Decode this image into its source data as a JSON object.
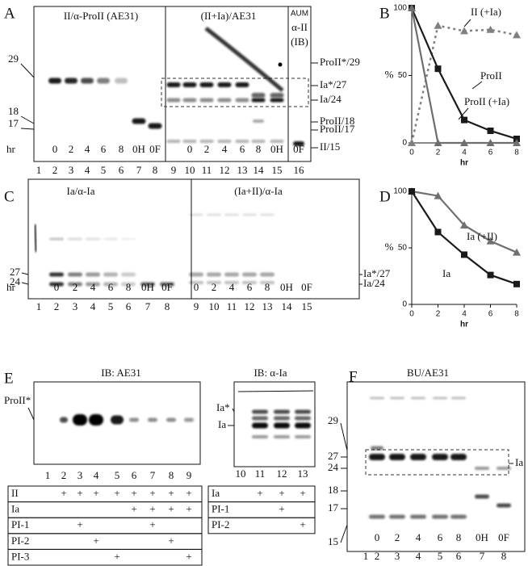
{
  "panel_letters": [
    "A",
    "B",
    "C",
    "D",
    "E",
    "F"
  ],
  "panels": {
    "A": {
      "titles": [
        "II/α-ProII (AE31)",
        "(II+Ia)/AE31",
        "AUM",
        "α-II",
        "(IB)"
      ],
      "markers": [
        "29",
        "18",
        "17"
      ],
      "hr": "hr",
      "times": [
        "0",
        "2",
        "4",
        "6",
        "8",
        "0H",
        "0F",
        "0",
        "2",
        "4",
        "6",
        "8",
        "0H",
        "0F"
      ],
      "lanes": [
        "1",
        "2",
        "3",
        "4",
        "5",
        "6",
        "7",
        "8",
        "9",
        "10",
        "11",
        "12",
        "13",
        "14",
        "15",
        "16"
      ],
      "right_labels": [
        "ProII*/29",
        "Ia*/27",
        "Ia/24",
        "ProII/18",
        "ProII/17",
        "II/15"
      ]
    },
    "C": {
      "titles": [
        "Ia/α-Ia",
        "(Ia+II)/α-Ia"
      ],
      "markers": [
        "27",
        "24"
      ],
      "hr": "hr",
      "times": [
        "0",
        "2",
        "4",
        "6",
        "8",
        "0H",
        "0F",
        "0",
        "2",
        "4",
        "6",
        "8",
        "0H",
        "0F"
      ],
      "lanes": [
        "1",
        "2",
        "3",
        "4",
        "5",
        "6",
        "7",
        "8",
        "9",
        "10",
        "11",
        "12",
        "13",
        "14",
        "15"
      ],
      "right_labels": [
        "Ia*/27",
        "Ia/24"
      ]
    },
    "E": {
      "titles": [
        "IB: AE31",
        "IB: α-Ia"
      ],
      "left_band_labels": [
        "ProII*"
      ],
      "right_band_labels": [
        "Ia*",
        "Ia"
      ],
      "lanes": [
        "1",
        "2",
        "3",
        "4",
        "5",
        "6",
        "7",
        "8",
        "9",
        "10",
        "11",
        "12",
        "13"
      ],
      "left_table": [
        {
          "label": "II",
          "cells": [
            null,
            "+",
            "+",
            "+",
            "+",
            "+",
            "+",
            "+",
            "+"
          ]
        },
        {
          "label": "Ia",
          "cells": [
            null,
            null,
            null,
            null,
            null,
            "+",
            "+",
            "+",
            "+"
          ]
        },
        {
          "label": "PI-1",
          "cells": [
            null,
            null,
            "+",
            null,
            null,
            null,
            "+",
            null,
            null
          ]
        },
        {
          "label": "PI-2",
          "cells": [
            null,
            null,
            null,
            "+",
            null,
            null,
            null,
            "+",
            null
          ]
        },
        {
          "label": "PI-3",
          "cells": [
            null,
            null,
            null,
            null,
            "+",
            null,
            null,
            null,
            "+"
          ]
        }
      ],
      "right_table": [
        {
          "label": "Ia",
          "cells": [
            null,
            "+",
            "+",
            "+"
          ]
        },
        {
          "label": "PI-1",
          "cells": [
            null,
            null,
            "+",
            null
          ]
        },
        {
          "label": "PI-2",
          "cells": [
            null,
            null,
            null,
            "+"
          ]
        }
      ]
    },
    "F": {
      "title": "BU/AE31",
      "markers": [
        "29",
        "27",
        "24",
        "18",
        "17",
        "15"
      ],
      "times": [
        "0",
        "2",
        "4",
        "6",
        "8",
        "0H",
        "0F"
      ],
      "lanes": [
        "1",
        "2",
        "3",
        "4",
        "5",
        "6",
        "7",
        "8"
      ],
      "right_labels": [
        "Ia"
      ]
    }
  },
  "chart_data": [
    {
      "type": "line",
      "x": [
        0,
        2,
        4,
        6,
        8
      ],
      "xlim": [
        0,
        8
      ],
      "xticks": [
        0,
        2,
        4,
        6,
        8
      ],
      "ylim": [
        0,
        100
      ],
      "yticks": [
        0,
        50,
        100
      ],
      "x_label": "hr",
      "y_label": "%",
      "series": [
        {
          "name": "II (+Ia)",
          "color": "#808080",
          "marker": "triangle",
          "line_style": "dotted",
          "values": [
            0,
            87,
            83,
            84,
            80
          ]
        },
        {
          "name": "ProII",
          "color": "#1a1a1a",
          "marker": "square",
          "line_style": "solid",
          "values": [
            100,
            55,
            17,
            9,
            3
          ]
        },
        {
          "name": "ProII (+Ia)",
          "color": "#6e6e6e",
          "marker": "triangle",
          "line_style": "solid",
          "values": [
            100,
            0,
            0,
            0,
            0
          ]
        }
      ]
    },
    {
      "type": "line",
      "x": [
        0,
        2,
        4,
        6,
        8
      ],
      "xlim": [
        0,
        8
      ],
      "xticks": [
        0,
        2,
        4,
        6,
        8
      ],
      "ylim": [
        0,
        100
      ],
      "yticks": [
        0,
        50,
        100
      ],
      "x_label": "hr",
      "y_label": "%",
      "series": [
        {
          "name": "Ia (+II)",
          "color": "#707070",
          "marker": "triangle",
          "line_style": "solid",
          "values": [
            100,
            96,
            70,
            56,
            46
          ]
        },
        {
          "name": "Ia",
          "color": "#1a1a1a",
          "marker": "square",
          "line_style": "solid",
          "values": [
            100,
            64,
            44,
            26,
            18
          ]
        }
      ]
    }
  ]
}
